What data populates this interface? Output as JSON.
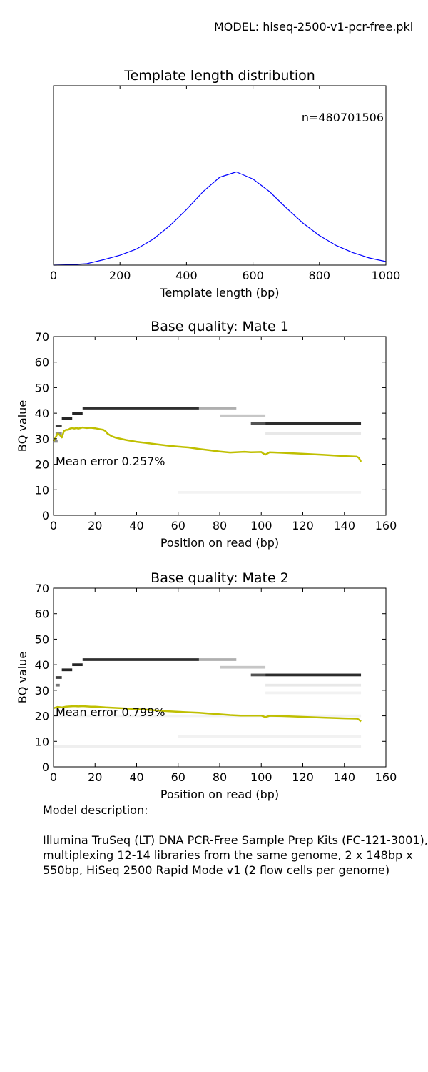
{
  "model_label": "MODEL: hiseq-2500-v1-pcr-free.pkl",
  "colors": {
    "template_line": "#0000ff",
    "mean_line": "#bfbf00",
    "heat_dark": "#1a1a1a"
  },
  "description": {
    "heading": "Model description:",
    "body": "Illumina TruSeq (LT) DNA PCR-Free Sample Prep Kits (FC-121-3001), multiplexing 12-14 libraries from the same genome, 2 x 148bp x 550bp, HiSeq 2500 Rapid Mode v1 (2 flow cells per genome)"
  },
  "chart_data": [
    {
      "type": "line",
      "title": "Template length distribution",
      "xlabel": "Template length (bp)",
      "ylabel": "",
      "xlim": [
        0,
        1000
      ],
      "ylim": [
        0,
        1
      ],
      "xticks": [
        0,
        200,
        400,
        600,
        800,
        1000
      ],
      "yticks": [],
      "annotation": "n=480701506",
      "series": [
        {
          "x": [
            0,
            50,
            100,
            150,
            200,
            250,
            300,
            350,
            400,
            450,
            500,
            550,
            600,
            650,
            700,
            750,
            800,
            850,
            900,
            950,
            1000
          ],
          "y": [
            0.0,
            0.002,
            0.008,
            0.03,
            0.055,
            0.09,
            0.145,
            0.22,
            0.31,
            0.41,
            0.49,
            0.52,
            0.48,
            0.41,
            0.32,
            0.235,
            0.165,
            0.11,
            0.07,
            0.04,
            0.02
          ]
        }
      ]
    },
    {
      "type": "heatmap",
      "title": "Base quality: Mate 1",
      "xlabel": "Position on read (bp)",
      "ylabel": "BQ value",
      "xlim": [
        0,
        160
      ],
      "ylim": [
        0,
        70
      ],
      "xticks": [
        0,
        20,
        40,
        60,
        80,
        100,
        120,
        140,
        160
      ],
      "yticks": [
        0,
        10,
        20,
        30,
        40,
        50,
        60,
        70
      ],
      "annotation": "Mean error 0.257%",
      "heatmap_bands": [
        {
          "x0": 0,
          "x1": 2,
          "q": 29,
          "i": 0.5
        },
        {
          "x0": 1,
          "x1": 4,
          "q": 32,
          "i": 0.5
        },
        {
          "x0": 1,
          "x1": 4,
          "q": 35,
          "i": 0.85
        },
        {
          "x0": 4,
          "x1": 9,
          "q": 38,
          "i": 0.95
        },
        {
          "x0": 9,
          "x1": 14,
          "q": 40,
          "i": 0.95
        },
        {
          "x0": 14,
          "x1": 70,
          "q": 42,
          "i": 0.9
        },
        {
          "x0": 70,
          "x1": 88,
          "q": 42,
          "i": 0.35
        },
        {
          "x0": 80,
          "x1": 102,
          "q": 39,
          "i": 0.25
        },
        {
          "x0": 95,
          "x1": 102,
          "q": 36,
          "i": 0.75
        },
        {
          "x0": 102,
          "x1": 148,
          "q": 36,
          "i": 0.92
        },
        {
          "x0": 102,
          "x1": 148,
          "q": 32,
          "i": 0.1
        },
        {
          "x0": 60,
          "x1": 148,
          "q": 9,
          "i": 0.05
        }
      ],
      "series": [
        {
          "name": "mean",
          "x": [
            0,
            1,
            2,
            3,
            4,
            5,
            6,
            7,
            8,
            9,
            10,
            11,
            12,
            13,
            14,
            16,
            18,
            20,
            22,
            24,
            25,
            26,
            28,
            30,
            35,
            40,
            45,
            50,
            55,
            60,
            65,
            70,
            75,
            80,
            85,
            90,
            92,
            95,
            100,
            101,
            102,
            104,
            110,
            120,
            130,
            140,
            146,
            147,
            148
          ],
          "y": [
            29,
            30.5,
            32,
            31.5,
            30.5,
            33,
            33.5,
            33.5,
            34,
            34.2,
            34,
            34.2,
            34,
            34.2,
            34.4,
            34.2,
            34.3,
            34.1,
            33.8,
            33.5,
            33,
            32,
            31,
            30.4,
            29.5,
            28.8,
            28.3,
            27.8,
            27.3,
            26.9,
            26.6,
            26,
            25.5,
            25,
            24.6,
            24.8,
            24.9,
            24.7,
            24.8,
            24.2,
            23.8,
            24.7,
            24.5,
            24.1,
            23.7,
            23.2,
            23,
            22.5,
            21
          ]
        }
      ]
    },
    {
      "type": "heatmap",
      "title": "Base quality: Mate 2",
      "xlabel": "Position on read (bp)",
      "ylabel": "BQ value",
      "xlim": [
        0,
        160
      ],
      "ylim": [
        0,
        70
      ],
      "xticks": [
        0,
        20,
        40,
        60,
        80,
        100,
        120,
        140,
        160
      ],
      "yticks": [
        0,
        10,
        20,
        30,
        40,
        50,
        60,
        70
      ],
      "annotation": "Mean error 0.799%",
      "heatmap_bands": [
        {
          "x0": 1,
          "x1": 3,
          "q": 32,
          "i": 0.6
        },
        {
          "x0": 1,
          "x1": 4,
          "q": 35,
          "i": 0.85
        },
        {
          "x0": 4,
          "x1": 9,
          "q": 38,
          "i": 0.95
        },
        {
          "x0": 9,
          "x1": 14,
          "q": 40,
          "i": 0.95
        },
        {
          "x0": 14,
          "x1": 70,
          "q": 42,
          "i": 0.9
        },
        {
          "x0": 70,
          "x1": 88,
          "q": 42,
          "i": 0.35
        },
        {
          "x0": 80,
          "x1": 102,
          "q": 39,
          "i": 0.25
        },
        {
          "x0": 95,
          "x1": 102,
          "q": 36,
          "i": 0.75
        },
        {
          "x0": 102,
          "x1": 148,
          "q": 36,
          "i": 0.92
        },
        {
          "x0": 102,
          "x1": 148,
          "q": 32,
          "i": 0.1
        },
        {
          "x0": 102,
          "x1": 148,
          "q": 29,
          "i": 0.06
        },
        {
          "x0": 0,
          "x1": 148,
          "q": 20,
          "i": 0.05
        },
        {
          "x0": 60,
          "x1": 148,
          "q": 12,
          "i": 0.06
        },
        {
          "x0": 0,
          "x1": 148,
          "q": 8,
          "i": 0.07
        }
      ],
      "series": [
        {
          "name": "mean",
          "x": [
            0,
            2,
            4,
            6,
            8,
            10,
            12,
            14,
            16,
            18,
            20,
            25,
            30,
            35,
            40,
            45,
            50,
            55,
            60,
            65,
            70,
            75,
            80,
            85,
            90,
            95,
            100,
            101,
            102,
            104,
            110,
            120,
            130,
            140,
            146,
            147,
            148
          ],
          "y": [
            23,
            23.5,
            23.3,
            23.6,
            23.7,
            23.8,
            23.7,
            23.8,
            23.7,
            23.6,
            23.6,
            23.3,
            23.1,
            22.9,
            22.6,
            22.4,
            22.1,
            21.8,
            21.6,
            21.4,
            21.2,
            20.9,
            20.6,
            20.3,
            20.1,
            20.1,
            20.1,
            19.8,
            19.5,
            20,
            19.9,
            19.6,
            19.3,
            19.0,
            18.9,
            18.5,
            17.8
          ]
        }
      ]
    }
  ]
}
